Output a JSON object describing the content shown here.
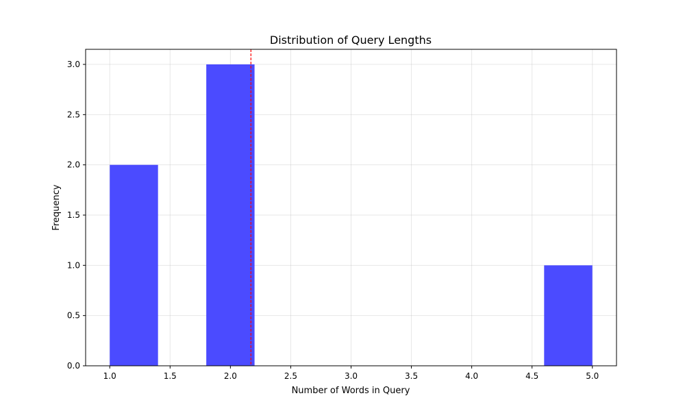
{
  "chart_data": {
    "type": "bar",
    "title": "Distribution of Query Lengths",
    "xlabel": "Number of Words in Query",
    "ylabel": "Frequency",
    "xlim": [
      0.8,
      5.2
    ],
    "ylim": [
      0,
      3.15
    ],
    "xticks": [
      1.0,
      1.5,
      2.0,
      2.5,
      3.0,
      3.5,
      4.0,
      4.5,
      5.0
    ],
    "xtick_labels": [
      "1.0",
      "1.5",
      "2.0",
      "2.5",
      "3.0",
      "3.5",
      "4.0",
      "4.5",
      "5.0"
    ],
    "yticks": [
      0.0,
      0.5,
      1.0,
      1.5,
      2.0,
      2.5,
      3.0
    ],
    "ytick_labels": [
      "0.0",
      "0.5",
      "1.0",
      "1.5",
      "2.0",
      "2.5",
      "3.0"
    ],
    "grid": true,
    "bins": [
      {
        "x0": 1.0,
        "x1": 1.4,
        "count": 2
      },
      {
        "x0": 1.4,
        "x1": 1.8,
        "count": 0
      },
      {
        "x0": 1.8,
        "x1": 2.2,
        "count": 3
      },
      {
        "x0": 2.2,
        "x1": 2.6,
        "count": 0
      },
      {
        "x0": 2.6,
        "x1": 3.0,
        "count": 0
      },
      {
        "x0": 3.0,
        "x1": 3.4,
        "count": 0
      },
      {
        "x0": 3.4,
        "x1": 3.8,
        "count": 0
      },
      {
        "x0": 3.8,
        "x1": 4.2,
        "count": 0
      },
      {
        "x0": 4.2,
        "x1": 4.6,
        "count": 0
      },
      {
        "x0": 4.6,
        "x1": 5.0,
        "count": 1
      }
    ],
    "mean_line": {
      "x": 2.17,
      "color": "#ff0000",
      "style": "dashed"
    },
    "bar_color": "#4b4bff"
  }
}
